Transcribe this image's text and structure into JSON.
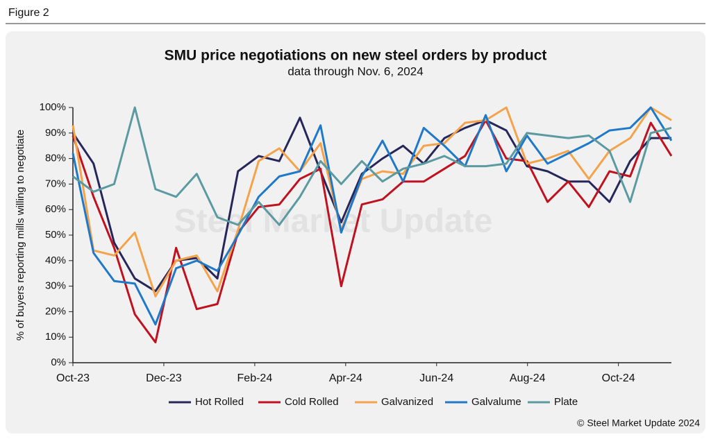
{
  "figure_label": "Figure 2",
  "chart_data": {
    "type": "line",
    "title": "SMU price negotiations on new steel orders by product",
    "subtitle": "data through Nov. 6, 2024",
    "y_label": "% of buyers reporting mills willing to negotiate",
    "watermark": "Steel Market Update",
    "source": "© Steel Market Update 2024",
    "x": [
      0,
      0.454,
      0.908,
      1.362,
      1.816,
      2.27,
      2.724,
      3.178,
      3.632,
      4.086,
      4.54,
      4.994,
      5.448,
      5.902,
      6.356,
      6.81,
      7.264,
      7.718,
      8.172,
      8.626,
      9.08,
      9.534,
      9.988,
      10.442,
      10.896,
      11.35,
      11.804,
      12.258,
      12.712,
      13.166
    ],
    "xlim": [
      0,
      13.166
    ],
    "xticks": [
      {
        "value": 0,
        "label": "Oct-23"
      },
      {
        "value": 2,
        "label": "Dec-23"
      },
      {
        "value": 4,
        "label": "Feb-24"
      },
      {
        "value": 6,
        "label": "Apr-24"
      },
      {
        "value": 8,
        "label": "Jun-24"
      },
      {
        "value": 10,
        "label": "Aug-24"
      },
      {
        "value": 12,
        "label": "Oct-24"
      }
    ],
    "ylim": [
      0,
      100
    ],
    "yticks": [
      {
        "value": 0,
        "label": "0%"
      },
      {
        "value": 10,
        "label": "10%"
      },
      {
        "value": 20,
        "label": "20%"
      },
      {
        "value": 30,
        "label": "30%"
      },
      {
        "value": 40,
        "label": "40%"
      },
      {
        "value": 50,
        "label": "50%"
      },
      {
        "value": 60,
        "label": "60%"
      },
      {
        "value": 70,
        "label": "70%"
      },
      {
        "value": 80,
        "label": "80%"
      },
      {
        "value": 90,
        "label": "90%"
      },
      {
        "value": 100,
        "label": "100%"
      }
    ],
    "legend": "bottom",
    "series": [
      {
        "name": "Hot Rolled",
        "color": "#26265a",
        "values": [
          90,
          78,
          47,
          33,
          28,
          40,
          41,
          33,
          75,
          81,
          79,
          96,
          75,
          55,
          74,
          80,
          85,
          78,
          88,
          92,
          95,
          91,
          77,
          75,
          71,
          71,
          63,
          79,
          88,
          88
        ]
      },
      {
        "name": "Cold Rolled",
        "color": "#c0111f",
        "values": [
          89,
          65,
          45,
          19,
          8,
          45,
          21,
          23,
          51,
          61,
          62,
          72,
          76,
          30,
          62,
          64,
          71,
          71,
          76,
          81,
          95,
          80,
          79,
          63,
          71,
          61,
          75,
          73,
          94,
          81
        ]
      },
      {
        "name": "Galvanized",
        "color": "#f5a34a",
        "values": [
          93,
          44,
          42,
          51,
          26,
          40,
          42,
          28,
          52,
          79,
          84,
          75,
          86,
          52,
          72,
          75,
          74,
          85,
          86,
          94,
          95,
          100,
          78,
          80,
          83,
          72,
          83,
          88,
          100,
          95
        ]
      },
      {
        "name": "Galvalume",
        "color": "#1f78c8",
        "values": [
          82,
          43,
          32,
          31,
          15,
          37,
          40,
          36,
          50,
          65,
          73,
          75,
          93,
          51,
          73,
          87,
          71,
          92,
          85,
          77,
          97,
          75,
          89,
          78,
          82,
          86,
          91,
          92,
          100,
          87
        ]
      },
      {
        "name": "Plate",
        "color": "#5b9aa0",
        "values": [
          73,
          67,
          70,
          100,
          68,
          65,
          74,
          57,
          54,
          63,
          54,
          65,
          79,
          70,
          79,
          71,
          76,
          78,
          81,
          77,
          77,
          78,
          90,
          89,
          88,
          89,
          83,
          63,
          90,
          92
        ]
      }
    ]
  }
}
